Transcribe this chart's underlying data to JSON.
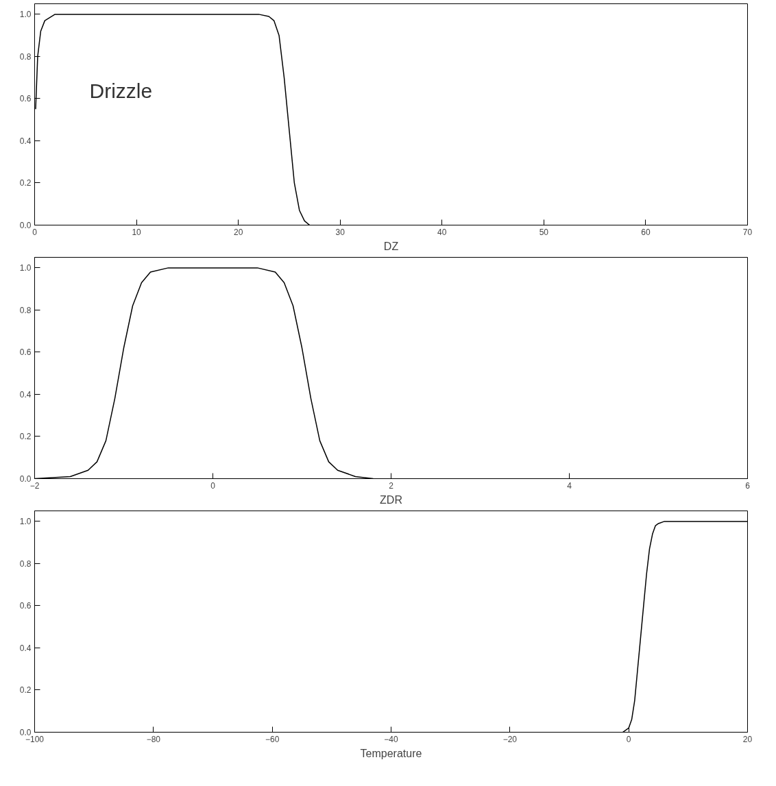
{
  "chart_data": [
    {
      "type": "line",
      "xlabel": "DZ",
      "annotations": [
        "Drizzle"
      ],
      "xlim": [
        0,
        70
      ],
      "xticks": [
        0,
        10,
        20,
        30,
        40,
        50,
        60,
        70
      ],
      "ylim": [
        0,
        1.05
      ],
      "yticks": [
        {
          "value": 0,
          "label": "0.0"
        },
        {
          "value": 0.2,
          "label": "0.2"
        },
        {
          "value": 0.4,
          "label": "0.4"
        },
        {
          "value": 0.6,
          "label": "0.6"
        },
        {
          "value": 0.8,
          "label": "0.8"
        },
        {
          "value": 1,
          "label": "1.0"
        }
      ],
      "grid": false,
      "series": [
        {
          "color": "#000000",
          "x": [
            0.1,
            0.3,
            0.6,
            1,
            2,
            5,
            10,
            15,
            20,
            22,
            23,
            23.5,
            24,
            24.5,
            25,
            25.5,
            26,
            26.5,
            27
          ],
          "values": [
            0.55,
            0.8,
            0.92,
            0.97,
            1,
            1,
            1,
            1,
            1,
            1,
            0.99,
            0.97,
            0.9,
            0.7,
            0.45,
            0.2,
            0.07,
            0.02,
            0
          ]
        }
      ]
    },
    {
      "type": "line",
      "xlabel": "ZDR",
      "xlim": [
        -2,
        6
      ],
      "xticks": [
        -2,
        0,
        2,
        4,
        6
      ],
      "ylim": [
        0,
        1.05
      ],
      "yticks": [
        {
          "value": 0,
          "label": "0.0"
        },
        {
          "value": 0.2,
          "label": "0.2"
        },
        {
          "value": 0.4,
          "label": "0.4"
        },
        {
          "value": 0.6,
          "label": "0.6"
        },
        {
          "value": 0.8,
          "label": "0.8"
        },
        {
          "value": 1,
          "label": "1.0"
        }
      ],
      "grid": false,
      "series": [
        {
          "color": "#000000",
          "x": [
            -2,
            -1.6,
            -1.4,
            -1.3,
            -1.2,
            -1.1,
            -1.0,
            -0.9,
            -0.8,
            -0.7,
            -0.5,
            0,
            0.5,
            0.7,
            0.8,
            0.9,
            1.0,
            1.1,
            1.2,
            1.3,
            1.4,
            1.6,
            1.8
          ],
          "values": [
            0,
            0.01,
            0.04,
            0.08,
            0.18,
            0.38,
            0.62,
            0.82,
            0.93,
            0.98,
            1,
            1,
            1,
            0.98,
            0.93,
            0.82,
            0.62,
            0.38,
            0.18,
            0.08,
            0.04,
            0.01,
            0
          ]
        }
      ]
    },
    {
      "type": "line",
      "xlabel": "Temperature",
      "xlim": [
        -100,
        20
      ],
      "xticks": [
        -100,
        -80,
        -60,
        -40,
        -20,
        0,
        20
      ],
      "ylim": [
        0,
        1.05
      ],
      "yticks": [
        {
          "value": 0,
          "label": "0.0"
        },
        {
          "value": 0.2,
          "label": "0.2"
        },
        {
          "value": 0.4,
          "label": "0.4"
        },
        {
          "value": 0.6,
          "label": "0.6"
        },
        {
          "value": 0.8,
          "label": "0.8"
        },
        {
          "value": 1,
          "label": "1.0"
        }
      ],
      "grid": false,
      "series": [
        {
          "color": "#000000",
          "x": [
            -1,
            0,
            0.5,
            1,
            1.5,
            2,
            2.5,
            3,
            3.5,
            4,
            4.5,
            5,
            6,
            10,
            20
          ],
          "values": [
            0,
            0.02,
            0.06,
            0.15,
            0.3,
            0.45,
            0.6,
            0.75,
            0.87,
            0.94,
            0.98,
            0.99,
            1,
            1,
            1
          ]
        }
      ]
    }
  ]
}
